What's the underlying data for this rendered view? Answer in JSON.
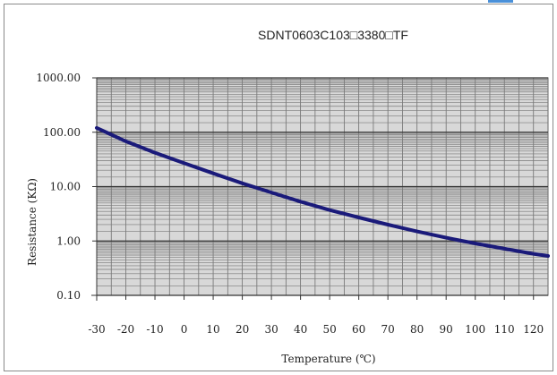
{
  "chart_data": {
    "type": "line",
    "title": "SDNT0603C103□3380□TF",
    "xlabel": "Temperature (℃)",
    "ylabel": "Resistance (KΩ)",
    "x_ticks": [
      -30,
      -20,
      -10,
      0,
      10,
      20,
      30,
      40,
      50,
      60,
      70,
      80,
      90,
      100,
      110,
      120
    ],
    "x_tick_labels": [
      "-30",
      "-20",
      "-10",
      "0",
      "10",
      "20",
      "30",
      "40",
      "50",
      "60",
      "70",
      "80",
      "90",
      "100",
      "110",
      "120"
    ],
    "y_ticks": [
      0.1,
      1,
      10,
      100,
      1000
    ],
    "y_tick_labels": [
      "0.10",
      "1.00",
      "10.00",
      "100.00",
      "1000.00"
    ],
    "y_scale": "log",
    "xlim": [
      -30,
      125
    ],
    "ylim": [
      0.1,
      1000
    ],
    "grid": true,
    "series": [
      {
        "color": "#1a1a7a",
        "x": [
          -30,
          -20,
          -10,
          0,
          10,
          20,
          30,
          40,
          50,
          60,
          70,
          80,
          90,
          100,
          110,
          120,
          125
        ],
        "y": [
          120,
          68,
          42,
          27,
          17.5,
          11.5,
          7.8,
          5.3,
          3.7,
          2.7,
          2.0,
          1.5,
          1.15,
          0.9,
          0.72,
          0.58,
          0.53
        ]
      }
    ]
  }
}
